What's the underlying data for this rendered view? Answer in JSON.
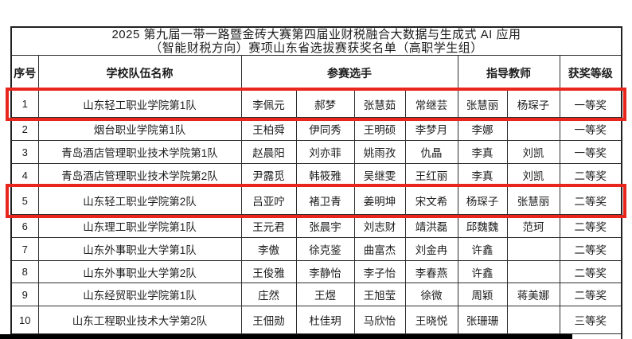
{
  "title": {
    "line1": "2025 第九届一带一路暨金砖大赛第四届业财税融合大数据与生成式 AI 应用",
    "line2": "（智能财税方向）赛项山东省选拔赛获奖名单（高职学生组）"
  },
  "table": {
    "headers": {
      "index": "序号",
      "team": "学校队伍名称",
      "contestants": "参赛选手",
      "advisors": "指导教师",
      "award": "获奖等级"
    },
    "rows": [
      {
        "index": "1",
        "team": "山东轻工职业学院第1队",
        "contestants": [
          "李佩元",
          "郝梦",
          "张慧茹",
          "常继芸"
        ],
        "advisors": [
          "张慧丽",
          "杨琛子"
        ],
        "award": "一等奖",
        "highlighted": true
      },
      {
        "index": "2",
        "team": "烟台职业学院第1队",
        "contestants": [
          "王柏舜",
          "伊同秀",
          "王明硕",
          "李梦月"
        ],
        "advisors": [
          "李娜",
          ""
        ],
        "award": "一等奖",
        "highlighted": false
      },
      {
        "index": "3",
        "team": "青岛酒店管理职业技术学院第1队",
        "contestants": [
          "赵晨阳",
          "刘亦菲",
          "姚雨孜",
          "仇晶"
        ],
        "advisors": [
          "李真",
          "刘凯"
        ],
        "award": "一等奖",
        "highlighted": false
      },
      {
        "index": "4",
        "team": "青岛酒店管理职业技术学院第2队",
        "contestants": [
          "尹露觅",
          "韩筱雅",
          "吴继雯",
          "王红丽"
        ],
        "advisors": [
          "李真",
          "刘凯"
        ],
        "award": "二等奖",
        "highlighted": false
      },
      {
        "index": "5",
        "team": "山东轻工职业学院第2队",
        "contestants": [
          "吕亚咛",
          "褚卫青",
          "姜明坤",
          "宋文希"
        ],
        "advisors": [
          "杨琛子",
          "张慧丽"
        ],
        "award": "二等奖",
        "highlighted": true
      },
      {
        "index": "6",
        "team": "山东理工职业学院第1队",
        "contestants": [
          "王元君",
          "张晨宇",
          "刘志财",
          "靖洪磊"
        ],
        "advisors": [
          "邱魏魏",
          "范珂"
        ],
        "award": "二等奖",
        "highlighted": false
      },
      {
        "index": "7",
        "team": "山东外事职业大学第1队",
        "contestants": [
          "李傲",
          "徐克鉴",
          "曲富杰",
          "刘金冉"
        ],
        "advisors": [
          "许鑫",
          ""
        ],
        "award": "二等奖",
        "highlighted": false
      },
      {
        "index": "8",
        "team": "山东外事职业大学第2队",
        "contestants": [
          "王俊雅",
          "李静怡",
          "李子怡",
          "李春燕"
        ],
        "advisors": [
          "许鑫",
          ""
        ],
        "award": "二等奖",
        "highlighted": false
      },
      {
        "index": "9",
        "team": "山东经贸职业学院第1队",
        "contestants": [
          "庄然",
          "王煜",
          "王旭莹",
          "徐微"
        ],
        "advisors": [
          "周颖",
          "蒋美娜"
        ],
        "award": "二等奖",
        "highlighted": false
      },
      {
        "index": "10",
        "team": "山东工程职业技术大学第2队",
        "contestants": [
          "王佃勋",
          "杜佳玥",
          "马欣怡",
          "王晓悦"
        ],
        "advisors": [
          "张珊珊",
          ""
        ],
        "award": "三等奖",
        "highlighted": false
      }
    ]
  },
  "colors": {
    "highlight_box": "#e8261d",
    "table_border": "#2e2e2e",
    "bottom_bar": "#000000"
  }
}
